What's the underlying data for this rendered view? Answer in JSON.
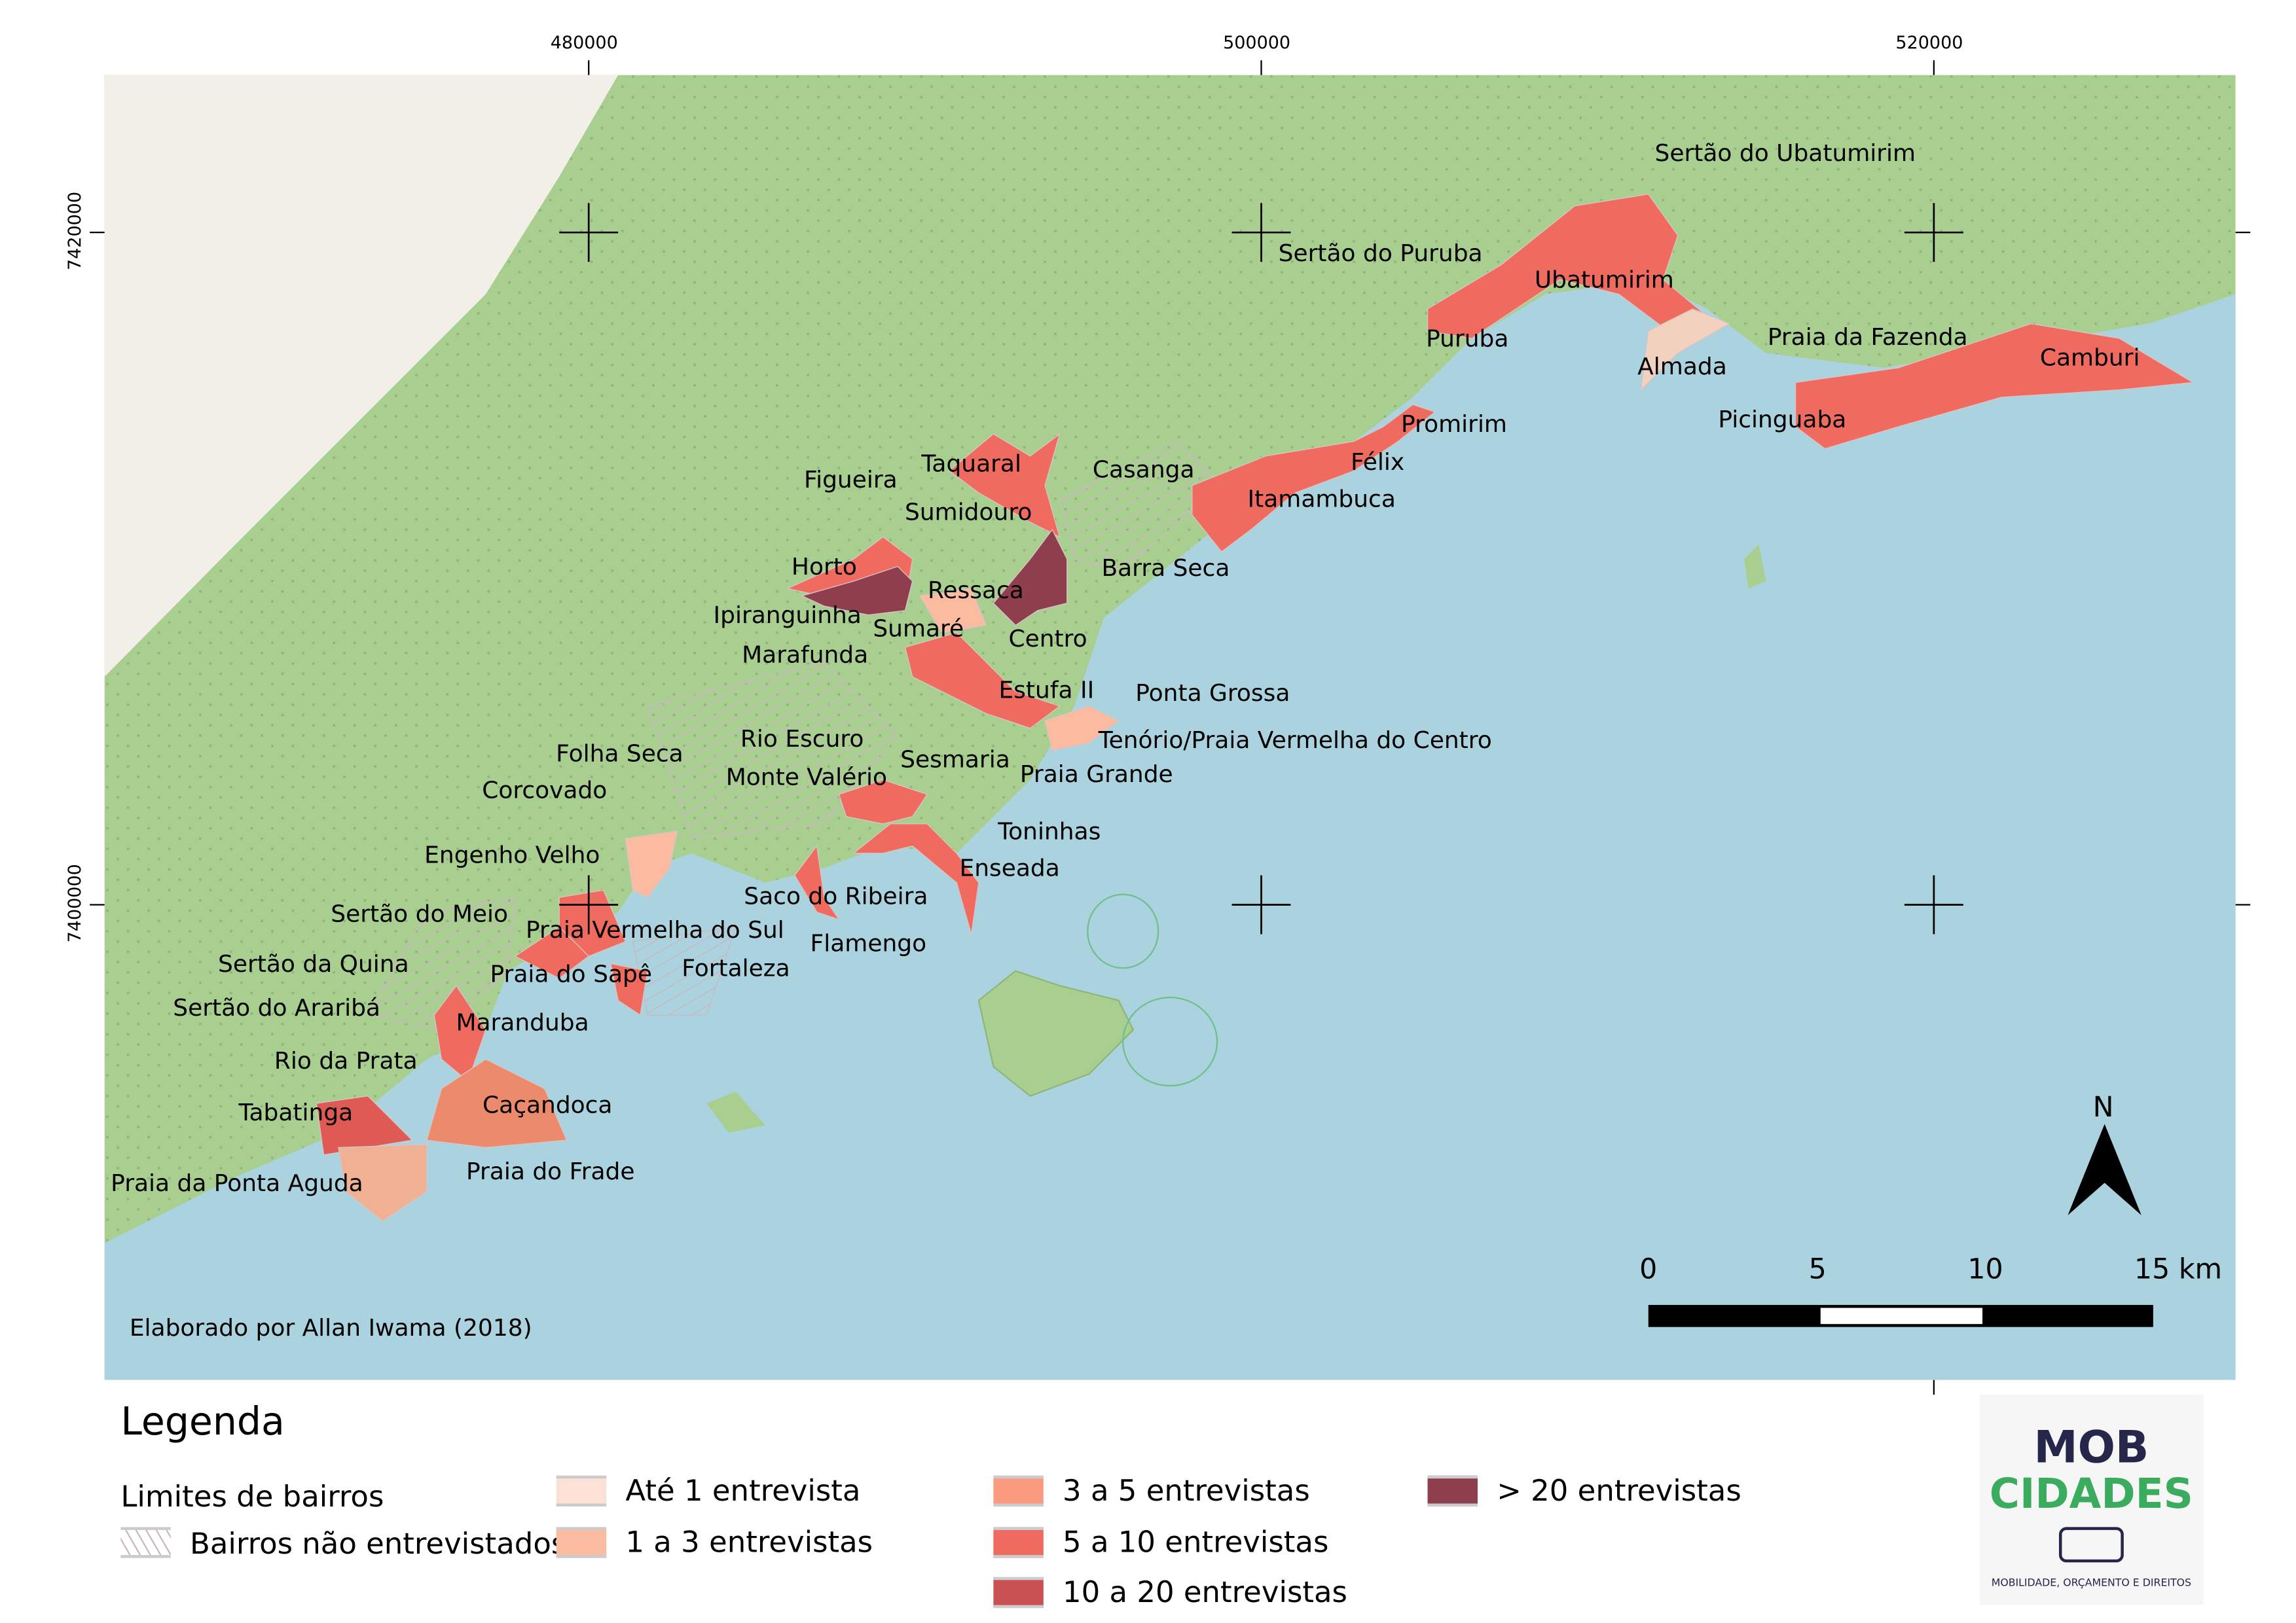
{
  "map": {
    "grid_labels_x": [
      "480000",
      "500000",
      "520000"
    ],
    "grid_labels_y": [
      "7420000",
      "7400000"
    ],
    "labels": [
      "Sertão do Ubatumirim",
      "Sertão do Puruba",
      "Ubatumirim",
      "Puruba",
      "Almada",
      "Praia da Fazenda",
      "Camburi",
      "Picinguaba",
      "Promirim",
      "Félix",
      "Itamambuca",
      "Casanga",
      "Taquaral",
      "Figueira",
      "Sumidouro",
      "Barra Seca",
      "Horto",
      "Ressaca",
      "Ipiranguinha",
      "Sumaré",
      "Centro",
      "Marafunda",
      "Estufa II",
      "Ponta Grossa",
      "Rio Escuro",
      "Tenório/Praia Vermelha do Centro",
      "Folha Seca",
      "Sesmaria",
      "Monte Valério",
      "Praia Grande",
      "Corcovado",
      "Toninhas",
      "Engenho Velho",
      "Enseada",
      "Saco do Ribeira",
      "Sertão do Meio",
      "Praia Vermelha do Sul",
      "Flamengo",
      "Sertão da Quina",
      "Praia do Sapê",
      "Fortaleza",
      "Sertão do Araribá",
      "Maranduba",
      "Rio da Prata",
      "Caçandoca",
      "Tabatinga",
      "Praia do Frade",
      "Praia da Ponta Aguda"
    ],
    "north_label": "N",
    "scale_labels": [
      "0",
      "5",
      "10",
      "15 km"
    ],
    "credit": "Elaborado por Allan Iwama (2018)",
    "colors": {
      "sea": "#aad3df",
      "land": "#a9cf90",
      "urban": "#f2efe9"
    }
  },
  "legend": {
    "title": "Legenda",
    "boundaries_label": "Limites de bairros",
    "not_interviewed": "Bairros não entrevistados",
    "classes": [
      {
        "label": "Até 1 entrevista",
        "color": "#fde0d6"
      },
      {
        "label": "1 a 3 entrevistas",
        "color": "#fbbba0"
      },
      {
        "label": "3 a 5 entrevistas",
        "color": "#fb9a7f"
      },
      {
        "label": "5 a 10 entrevistas",
        "color": "#ef6a5f"
      },
      {
        "label": "10 a 20 entrevistas",
        "color": "#c95053"
      },
      {
        "label": "> 20 entrevistas",
        "color": "#8f3e4d"
      }
    ]
  },
  "logo": {
    "line1": "MOB",
    "line2": "CIDADES",
    "tagline": "MOBILIDADE, ORÇAMENTO E DIREITOS"
  }
}
